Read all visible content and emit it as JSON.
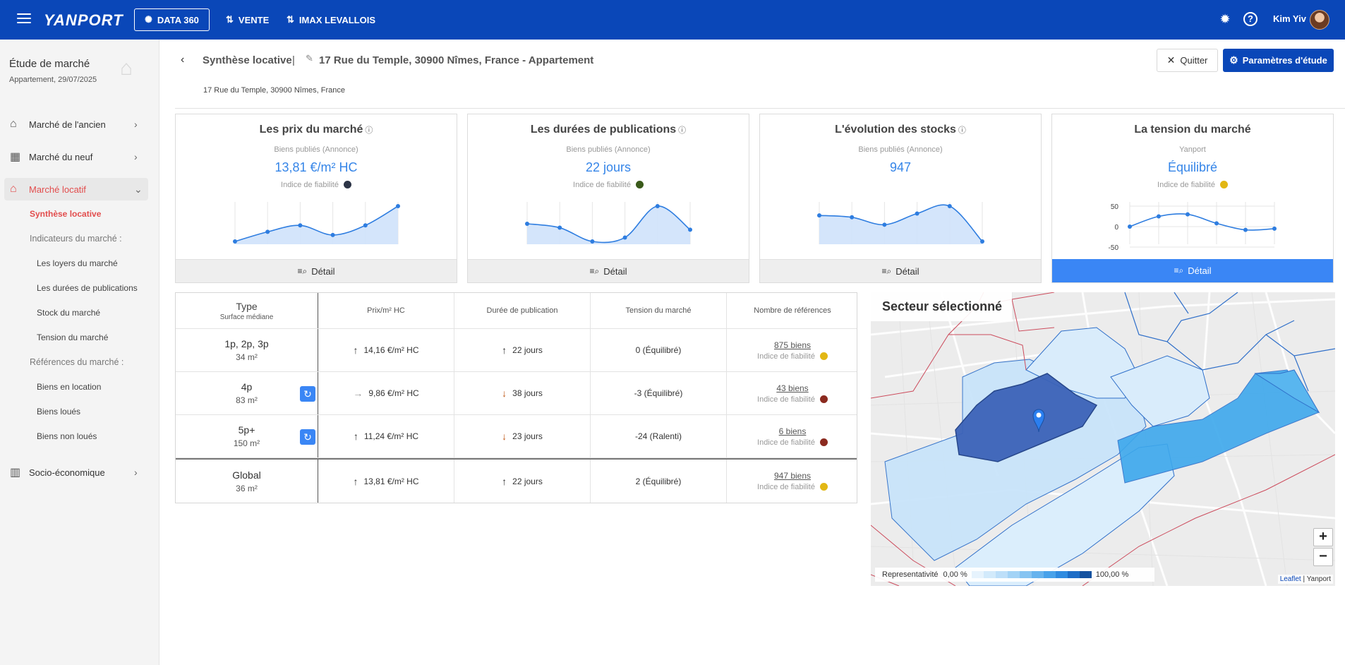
{
  "topbar": {
    "logo": "YANPORT",
    "data360_label": "DATA 360",
    "vente_label": "VENTE",
    "agency_label": "IMAX LEVALLOIS",
    "help_label": "?",
    "user_name": "Kim Yiv"
  },
  "sidebar": {
    "title": "Étude de marché",
    "subtitle": "Appartement, 29/07/2025",
    "nav": [
      {
        "label": "Marché de l'ancien"
      },
      {
        "label": "Marché du neuf"
      },
      {
        "label": "Marché locatif"
      },
      {
        "label": "Socio-économique"
      }
    ],
    "sub_active": "Synthèse locative",
    "indicators_head": "Indicateurs du marché :",
    "indicators": [
      "Les loyers du marché",
      "Les durées de publications",
      "Stock du marché",
      "Tension du marché"
    ],
    "references_head": "Références du marché :",
    "references": [
      "Biens en location",
      "Biens loués",
      "Biens non loués"
    ]
  },
  "header": {
    "title": "Synthèse locative",
    "separator": "|",
    "address": "17 Rue du Temple, 30900 Nîmes, France - Appartement",
    "small_address": "17 Rue du Temple, 30900 Nîmes, France",
    "quit_label": "Quitter",
    "params_label": "Paramètres d'étude"
  },
  "cards": [
    {
      "title": "Les prix du marché",
      "sub": "Biens publiés (Annonce)",
      "value": "13,81 €/m² HC",
      "reliability": "Indice de fiabilité",
      "dot": "#2d3547",
      "button": "Détail"
    },
    {
      "title": "Les durées de publications",
      "sub": "Biens publiés (Annonce)",
      "value": "22 jours",
      "reliability": "Indice de fiabilité",
      "dot": "#3a5a1a",
      "button": "Détail"
    },
    {
      "title": "L'évolution des stocks",
      "sub": "Biens publiés (Annonce)",
      "value": "947",
      "reliability": "Indice de fiabilité",
      "dot": null,
      "button": "Détail"
    },
    {
      "title": "La tension du marché",
      "sub": "Yanport",
      "value": "Équilibré",
      "reliability": "Indice de fiabilité",
      "dot": "#e2b714",
      "button": "Détail"
    }
  ],
  "tension_axis": [
    "50",
    "0",
    "-50"
  ],
  "table": {
    "headers": {
      "type": "Type",
      "type_sub": "Surface médiane",
      "price": "Prix/m² HC",
      "duration": "Durée de publication",
      "tension": "Tension du marché",
      "refs": "Nombre de références"
    },
    "rows": [
      {
        "type": "1p, 2p, 3p",
        "surface": "34 m²",
        "price": "14,16 €/m² HC",
        "price_trend": "up",
        "duration": "22 jours",
        "duration_trend": "up",
        "tension": "0 (Équilibré)",
        "refs": "875 biens",
        "reliability": "Indice de fiabilité",
        "dot": "#e2b714",
        "refresh": false
      },
      {
        "type": "4p",
        "surface": "83 m²",
        "price": "9,86 €/m² HC",
        "price_trend": "flat",
        "duration": "38 jours",
        "duration_trend": "down",
        "tension": "-3 (Équilibré)",
        "refs": "43 biens",
        "reliability": "Indice de fiabilité",
        "dot": "#8b2a1f",
        "refresh": true
      },
      {
        "type": "5p+",
        "surface": "150 m²",
        "price": "11,24 €/m² HC",
        "price_trend": "up",
        "duration": "23 jours",
        "duration_trend": "down",
        "tension": "-24 (Ralenti)",
        "refs": "6 biens",
        "reliability": "Indice de fiabilité",
        "dot": "#8b2a1f",
        "refresh": true
      },
      {
        "type": "Global",
        "surface": "36 m²",
        "price": "13,81 €/m² HC",
        "price_trend": "up",
        "duration": "22 jours",
        "duration_trend": "up",
        "tension": "2 (Équilibré)",
        "refs": "947 biens",
        "reliability": "Indice de fiabilité",
        "dot": "#e2b714",
        "refresh": false
      }
    ]
  },
  "map": {
    "title": "Secteur sélectionné",
    "legend_label": "Representativité",
    "legend_min": "0,00 %",
    "legend_max": "100,00 %",
    "zoom_in": "+",
    "zoom_out": "−",
    "attribution_leaflet": "Leaflet",
    "attribution_sep": " | ",
    "attribution_yanport": "Yanport"
  },
  "sparklines": {
    "prices": [
      13.1,
      13.4,
      13.6,
      13.3,
      13.6,
      14.2
    ],
    "durations": [
      24,
      22,
      15,
      17,
      33,
      21
    ],
    "stocks": [
      830,
      820,
      780,
      840,
      880,
      690
    ],
    "tension": [
      0,
      25,
      30,
      8,
      -8,
      -5
    ]
  },
  "colors": {
    "primary": "#0a47b8",
    "accent": "#3a86f5",
    "alert": "#e24d4d"
  }
}
